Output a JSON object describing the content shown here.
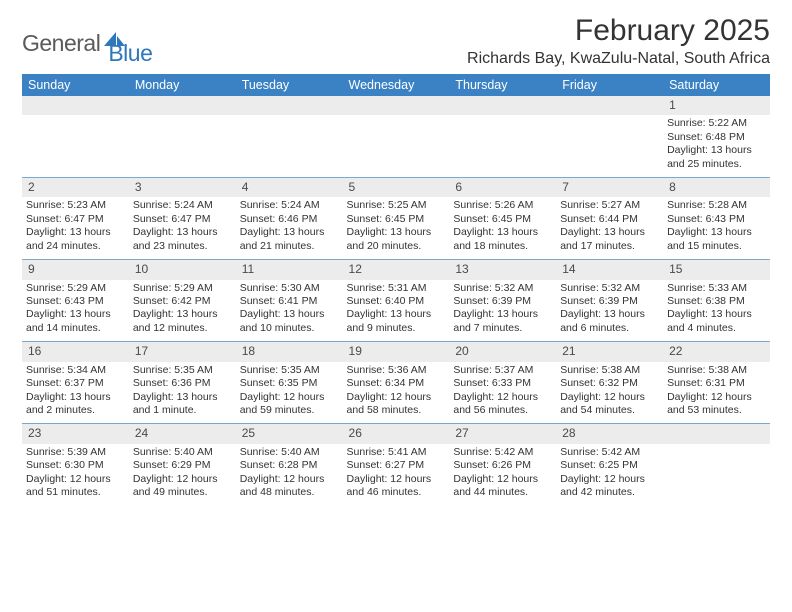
{
  "logo": {
    "general": "General",
    "blue": "Blue"
  },
  "title": "February 2025",
  "location": "Richards Bay, KwaZulu-Natal, South Africa",
  "colors": {
    "header_blue": "#3b82c4",
    "daynum_bg": "#ececec",
    "row_border": "#7aa8d0",
    "logo_gray": "#5a5a5a",
    "logo_blue": "#2f77bb"
  },
  "weekdays": [
    "Sunday",
    "Monday",
    "Tuesday",
    "Wednesday",
    "Thursday",
    "Friday",
    "Saturday"
  ],
  "weeks": [
    [
      null,
      null,
      null,
      null,
      null,
      null,
      {
        "day": "1",
        "sunrise": "5:22 AM",
        "sunset": "6:48 PM",
        "daylight": "13 hours and 25 minutes."
      }
    ],
    [
      {
        "day": "2",
        "sunrise": "5:23 AM",
        "sunset": "6:47 PM",
        "daylight": "13 hours and 24 minutes."
      },
      {
        "day": "3",
        "sunrise": "5:24 AM",
        "sunset": "6:47 PM",
        "daylight": "13 hours and 23 minutes."
      },
      {
        "day": "4",
        "sunrise": "5:24 AM",
        "sunset": "6:46 PM",
        "daylight": "13 hours and 21 minutes."
      },
      {
        "day": "5",
        "sunrise": "5:25 AM",
        "sunset": "6:45 PM",
        "daylight": "13 hours and 20 minutes."
      },
      {
        "day": "6",
        "sunrise": "5:26 AM",
        "sunset": "6:45 PM",
        "daylight": "13 hours and 18 minutes."
      },
      {
        "day": "7",
        "sunrise": "5:27 AM",
        "sunset": "6:44 PM",
        "daylight": "13 hours and 17 minutes."
      },
      {
        "day": "8",
        "sunrise": "5:28 AM",
        "sunset": "6:43 PM",
        "daylight": "13 hours and 15 minutes."
      }
    ],
    [
      {
        "day": "9",
        "sunrise": "5:29 AM",
        "sunset": "6:43 PM",
        "daylight": "13 hours and 14 minutes."
      },
      {
        "day": "10",
        "sunrise": "5:29 AM",
        "sunset": "6:42 PM",
        "daylight": "13 hours and 12 minutes."
      },
      {
        "day": "11",
        "sunrise": "5:30 AM",
        "sunset": "6:41 PM",
        "daylight": "13 hours and 10 minutes."
      },
      {
        "day": "12",
        "sunrise": "5:31 AM",
        "sunset": "6:40 PM",
        "daylight": "13 hours and 9 minutes."
      },
      {
        "day": "13",
        "sunrise": "5:32 AM",
        "sunset": "6:39 PM",
        "daylight": "13 hours and 7 minutes."
      },
      {
        "day": "14",
        "sunrise": "5:32 AM",
        "sunset": "6:39 PM",
        "daylight": "13 hours and 6 minutes."
      },
      {
        "day": "15",
        "sunrise": "5:33 AM",
        "sunset": "6:38 PM",
        "daylight": "13 hours and 4 minutes."
      }
    ],
    [
      {
        "day": "16",
        "sunrise": "5:34 AM",
        "sunset": "6:37 PM",
        "daylight": "13 hours and 2 minutes."
      },
      {
        "day": "17",
        "sunrise": "5:35 AM",
        "sunset": "6:36 PM",
        "daylight": "13 hours and 1 minute."
      },
      {
        "day": "18",
        "sunrise": "5:35 AM",
        "sunset": "6:35 PM",
        "daylight": "12 hours and 59 minutes."
      },
      {
        "day": "19",
        "sunrise": "5:36 AM",
        "sunset": "6:34 PM",
        "daylight": "12 hours and 58 minutes."
      },
      {
        "day": "20",
        "sunrise": "5:37 AM",
        "sunset": "6:33 PM",
        "daylight": "12 hours and 56 minutes."
      },
      {
        "day": "21",
        "sunrise": "5:38 AM",
        "sunset": "6:32 PM",
        "daylight": "12 hours and 54 minutes."
      },
      {
        "day": "22",
        "sunrise": "5:38 AM",
        "sunset": "6:31 PM",
        "daylight": "12 hours and 53 minutes."
      }
    ],
    [
      {
        "day": "23",
        "sunrise": "5:39 AM",
        "sunset": "6:30 PM",
        "daylight": "12 hours and 51 minutes."
      },
      {
        "day": "24",
        "sunrise": "5:40 AM",
        "sunset": "6:29 PM",
        "daylight": "12 hours and 49 minutes."
      },
      {
        "day": "25",
        "sunrise": "5:40 AM",
        "sunset": "6:28 PM",
        "daylight": "12 hours and 48 minutes."
      },
      {
        "day": "26",
        "sunrise": "5:41 AM",
        "sunset": "6:27 PM",
        "daylight": "12 hours and 46 minutes."
      },
      {
        "day": "27",
        "sunrise": "5:42 AM",
        "sunset": "6:26 PM",
        "daylight": "12 hours and 44 minutes."
      },
      {
        "day": "28",
        "sunrise": "5:42 AM",
        "sunset": "6:25 PM",
        "daylight": "12 hours and 42 minutes."
      },
      null
    ]
  ],
  "labels": {
    "sunrise": "Sunrise:",
    "sunset": "Sunset:",
    "daylight": "Daylight:"
  }
}
